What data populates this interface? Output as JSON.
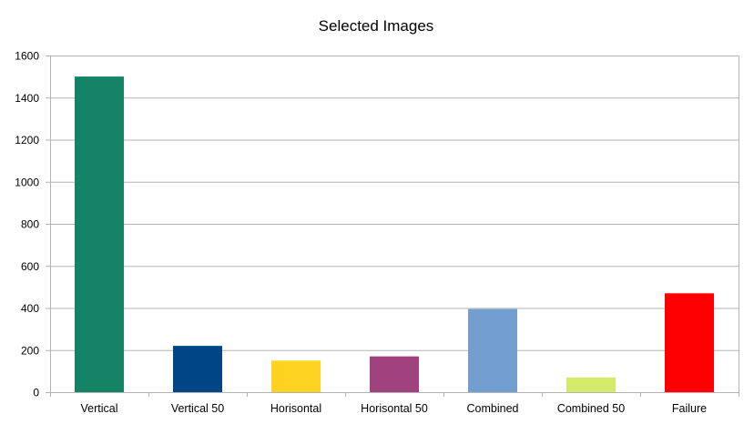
{
  "chart_data": {
    "type": "bar",
    "title": "Selected Images",
    "xlabel": "",
    "ylabel": "",
    "categories": [
      "Vertical",
      "Vertical 50",
      "Horisontal",
      "Horisontal 50",
      "Combined",
      "Combined 50",
      "Failure"
    ],
    "values": [
      1500,
      220,
      150,
      170,
      395,
      70,
      470
    ],
    "colors": [
      "#158466",
      "#004586",
      "#FFD320",
      "#A0427E",
      "#729FCF",
      "#D4EA6B",
      "#FF0000"
    ],
    "ylim": [
      0,
      1600
    ],
    "yticks": [
      0,
      200,
      400,
      600,
      800,
      1000,
      1200,
      1400,
      1600
    ],
    "grid": true,
    "legend": "none"
  }
}
